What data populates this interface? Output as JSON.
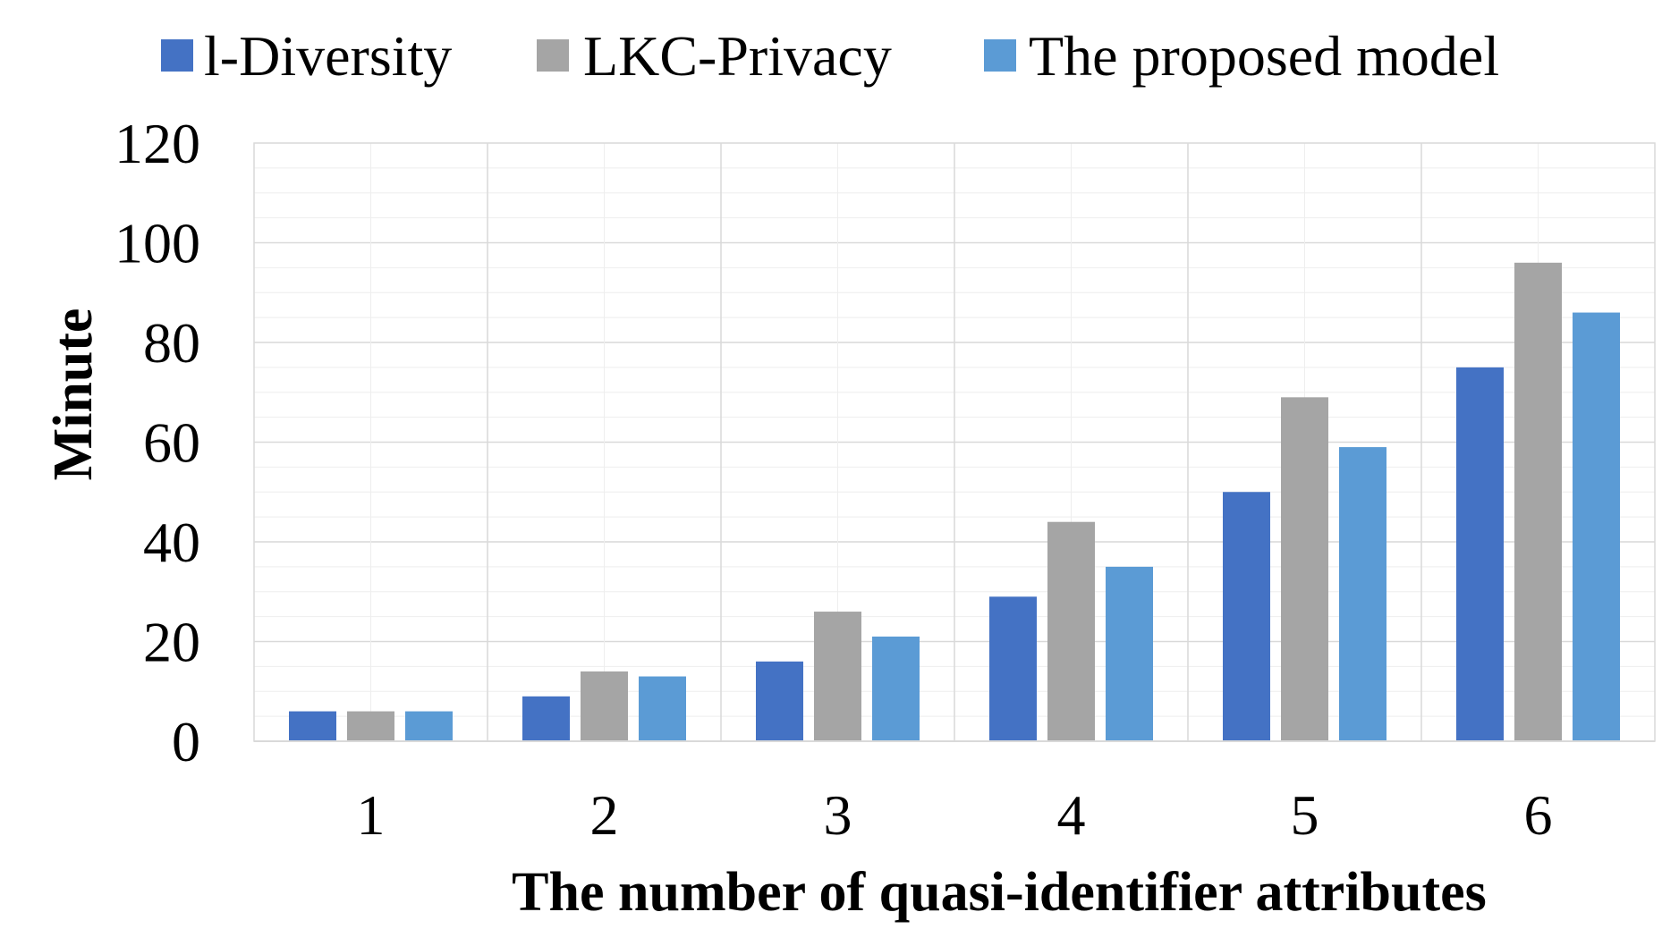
{
  "chart_data": {
    "type": "bar",
    "categories": [
      "1",
      "2",
      "3",
      "4",
      "5",
      "6"
    ],
    "series": [
      {
        "name": "l-Diversity",
        "values": [
          6,
          9,
          16,
          29,
          50,
          75
        ],
        "color": "#4472C4"
      },
      {
        "name": "LKC-Privacy",
        "values": [
          6,
          14,
          26,
          44,
          69,
          96
        ],
        "color": "#A5A5A5"
      },
      {
        "name": "The proposed model",
        "values": [
          6,
          13,
          21,
          35,
          59,
          86
        ],
        "color": "#5B9BD5"
      }
    ],
    "xlabel": "The number of quasi-identifier attributes",
    "ylabel": "Minute",
    "ylim": [
      0,
      120
    ],
    "yticks": [
      "0",
      "20",
      "40",
      "60",
      "80",
      "100",
      "120"
    ],
    "grid": true,
    "legend_position": "top"
  }
}
